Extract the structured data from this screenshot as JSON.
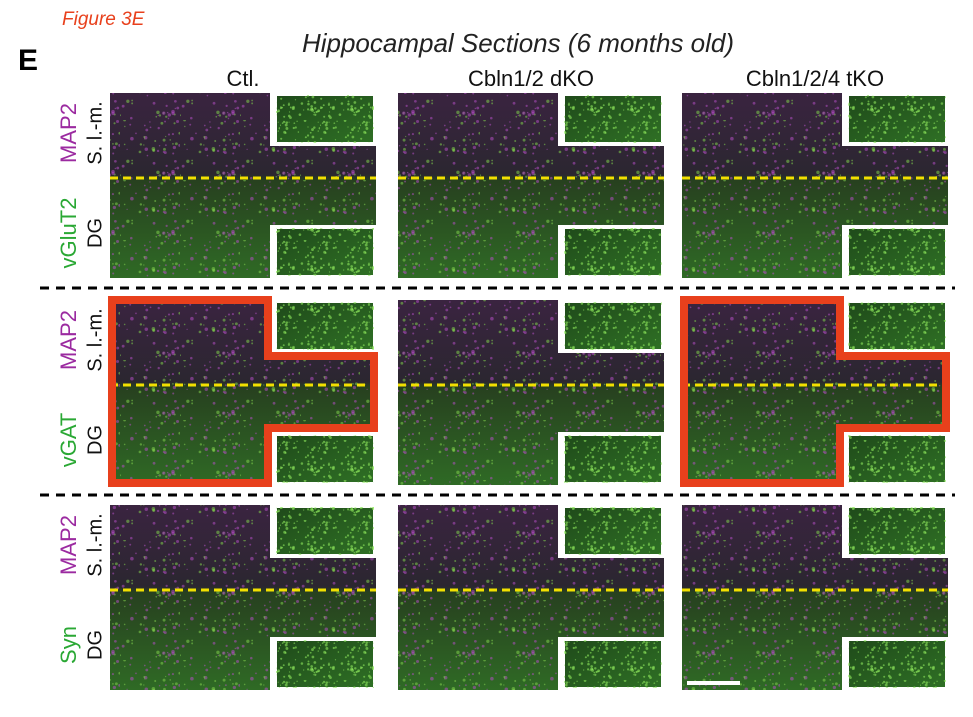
{
  "figure_label": "Figure 3E",
  "panel_letter": "E",
  "title": "Hippocampal Sections (6 months old)",
  "columns": [
    "Ctl.",
    "Cbln1/2 dKO",
    "Cbln1/2/4 tKO"
  ],
  "rows": [
    {
      "stain": "vGluT2",
      "counterstain": "MAP2",
      "upper_region": "S. l.-m.",
      "lower_region": "DG"
    },
    {
      "stain": "vGAT",
      "counterstain": "MAP2",
      "upper_region": "S. l.-m.",
      "lower_region": "DG"
    },
    {
      "stain": "Syn",
      "counterstain": "MAP2",
      "upper_region": "S. l.-m.",
      "lower_region": "DG"
    }
  ]
}
